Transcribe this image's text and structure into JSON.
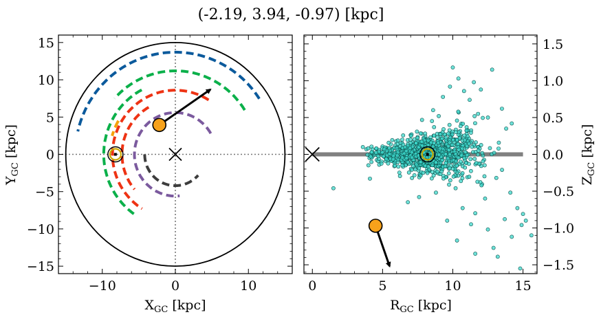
{
  "title": "(-2.19, 3.94, -0.97) [kpc]",
  "chart_data": [
    {
      "type": "scatter",
      "panel": "left",
      "xlabel_main": "X",
      "xlabel_sub": "GC",
      "xlabel_unit": " [kpc]",
      "ylabel_main": "Y",
      "ylabel_sub": "GC",
      "ylabel_unit": " [kpc]",
      "xlim": [
        -16,
        16
      ],
      "ylim": [
        -16,
        16
      ],
      "xticks": [
        -10,
        0,
        10
      ],
      "xtick_labels": [
        "−10",
        "0",
        "10"
      ],
      "yticks": [
        -15,
        -10,
        -5,
        0,
        5,
        10,
        15
      ],
      "ytick_labels": [
        "−15",
        "−10",
        "−5",
        "0",
        "5",
        "10",
        "15"
      ],
      "outer_circle_radius": 15,
      "galactic_center": [
        0,
        0
      ],
      "sun": [
        -8.2,
        0
      ],
      "object": [
        -2.19,
        3.94
      ],
      "velocity_arrow": {
        "from": [
          -2.19,
          3.94
        ],
        "to": [
          4.8,
          8.7
        ]
      },
      "spiral_arms": [
        {
          "color": "#0b5a9c",
          "radius": 13.7,
          "theta_start_deg": 33,
          "theta_end_deg": 167
        },
        {
          "color": "#0bb04a",
          "radius": 11.2,
          "theta_start_deg": 32,
          "theta_end_deg": 138
        },
        {
          "color": "#0bb04a",
          "radius": 9.8,
          "theta_start_deg": 118,
          "theta_end_deg": 235
        },
        {
          "color": "#ee3314",
          "radius": 8.6,
          "theta_start_deg": 58,
          "theta_end_deg": 238
        },
        {
          "color": "#ee3314",
          "radius": 7.3,
          "theta_start_deg": 120,
          "theta_end_deg": 220
        },
        {
          "color": "#7b5a9e",
          "radius": 5.6,
          "theta_start_deg": 30,
          "theta_end_deg": 276
        },
        {
          "color": "#f5a20b",
          "radius": 9.0,
          "theta_start_deg": 150,
          "theta_end_deg": 164
        },
        {
          "color": "#3d3d3d",
          "radius": 4.2,
          "theta_start_deg": 180,
          "theta_end_deg": 318
        }
      ]
    },
    {
      "type": "scatter",
      "panel": "right",
      "xlabel_main": "R",
      "xlabel_sub": "GC",
      "xlabel_unit": " [kpc]",
      "ylabel_main": "Z",
      "ylabel_sub": "GC",
      "ylabel_unit": " [kpc]",
      "xlim": [
        -0.6,
        16
      ],
      "ylim": [
        -1.62,
        1.62
      ],
      "xticks": [
        0,
        5,
        10,
        15
      ],
      "xtick_labels": [
        "0",
        "5",
        "10",
        "15"
      ],
      "yticks": [
        -1.5,
        -1.0,
        -0.5,
        0.0,
        0.5,
        1.0,
        1.5
      ],
      "ytick_labels": [
        "−1.5",
        "−1.0",
        "−0.5",
        "0.0",
        "0.5",
        "1.0",
        "1.5"
      ],
      "disk_line": {
        "x": [
          0,
          15
        ],
        "z": 0
      },
      "galactic_center": [
        0,
        0
      ],
      "sun": [
        8.2,
        0
      ],
      "object": [
        4.5,
        -0.97
      ],
      "velocity_arrow": {
        "from": [
          4.5,
          -0.97
        ],
        "to": [
          5.5,
          -1.52
        ]
      },
      "stars_color": "#3ed8cc",
      "stars_outliers": [
        [
          10.0,
          1.18
        ],
        [
          12.8,
          1.15
        ],
        [
          10.4,
          1.03
        ],
        [
          9.8,
          0.92
        ],
        [
          11.5,
          0.98
        ],
        [
          10.8,
          0.86
        ],
        [
          12.0,
          0.88
        ],
        [
          9.3,
          0.78
        ],
        [
          11.2,
          0.74
        ],
        [
          13.5,
          0.62
        ],
        [
          14.2,
          0.42
        ],
        [
          13.8,
          0.35
        ],
        [
          12.5,
          0.5
        ],
        [
          8.6,
          0.6
        ],
        [
          9.0,
          0.52
        ],
        [
          11.8,
          0.55
        ],
        [
          1.5,
          -0.46
        ],
        [
          4.1,
          -0.33
        ],
        [
          6.8,
          -0.65
        ],
        [
          7.6,
          -0.58
        ],
        [
          8.8,
          -0.52
        ],
        [
          10.2,
          -0.46
        ],
        [
          10.7,
          -0.73
        ],
        [
          11.6,
          -0.8
        ],
        [
          11.3,
          -0.95
        ],
        [
          12.5,
          -1.02
        ],
        [
          12.9,
          -1.27
        ],
        [
          13.7,
          -0.88
        ],
        [
          14.6,
          -0.73
        ],
        [
          14.9,
          -0.96
        ],
        [
          15.2,
          -0.9
        ],
        [
          15.6,
          -1.1
        ],
        [
          14.2,
          -1.12
        ],
        [
          13.2,
          -1.39
        ],
        [
          14.8,
          -1.55
        ],
        [
          10.3,
          -1.17
        ],
        [
          11.6,
          -1.35
        ],
        [
          12.3,
          -0.6
        ],
        [
          14.1,
          -0.52
        ],
        [
          13.1,
          -0.32
        ],
        [
          15.0,
          -0.81
        ],
        [
          9.6,
          -0.9
        ]
      ]
    }
  ]
}
